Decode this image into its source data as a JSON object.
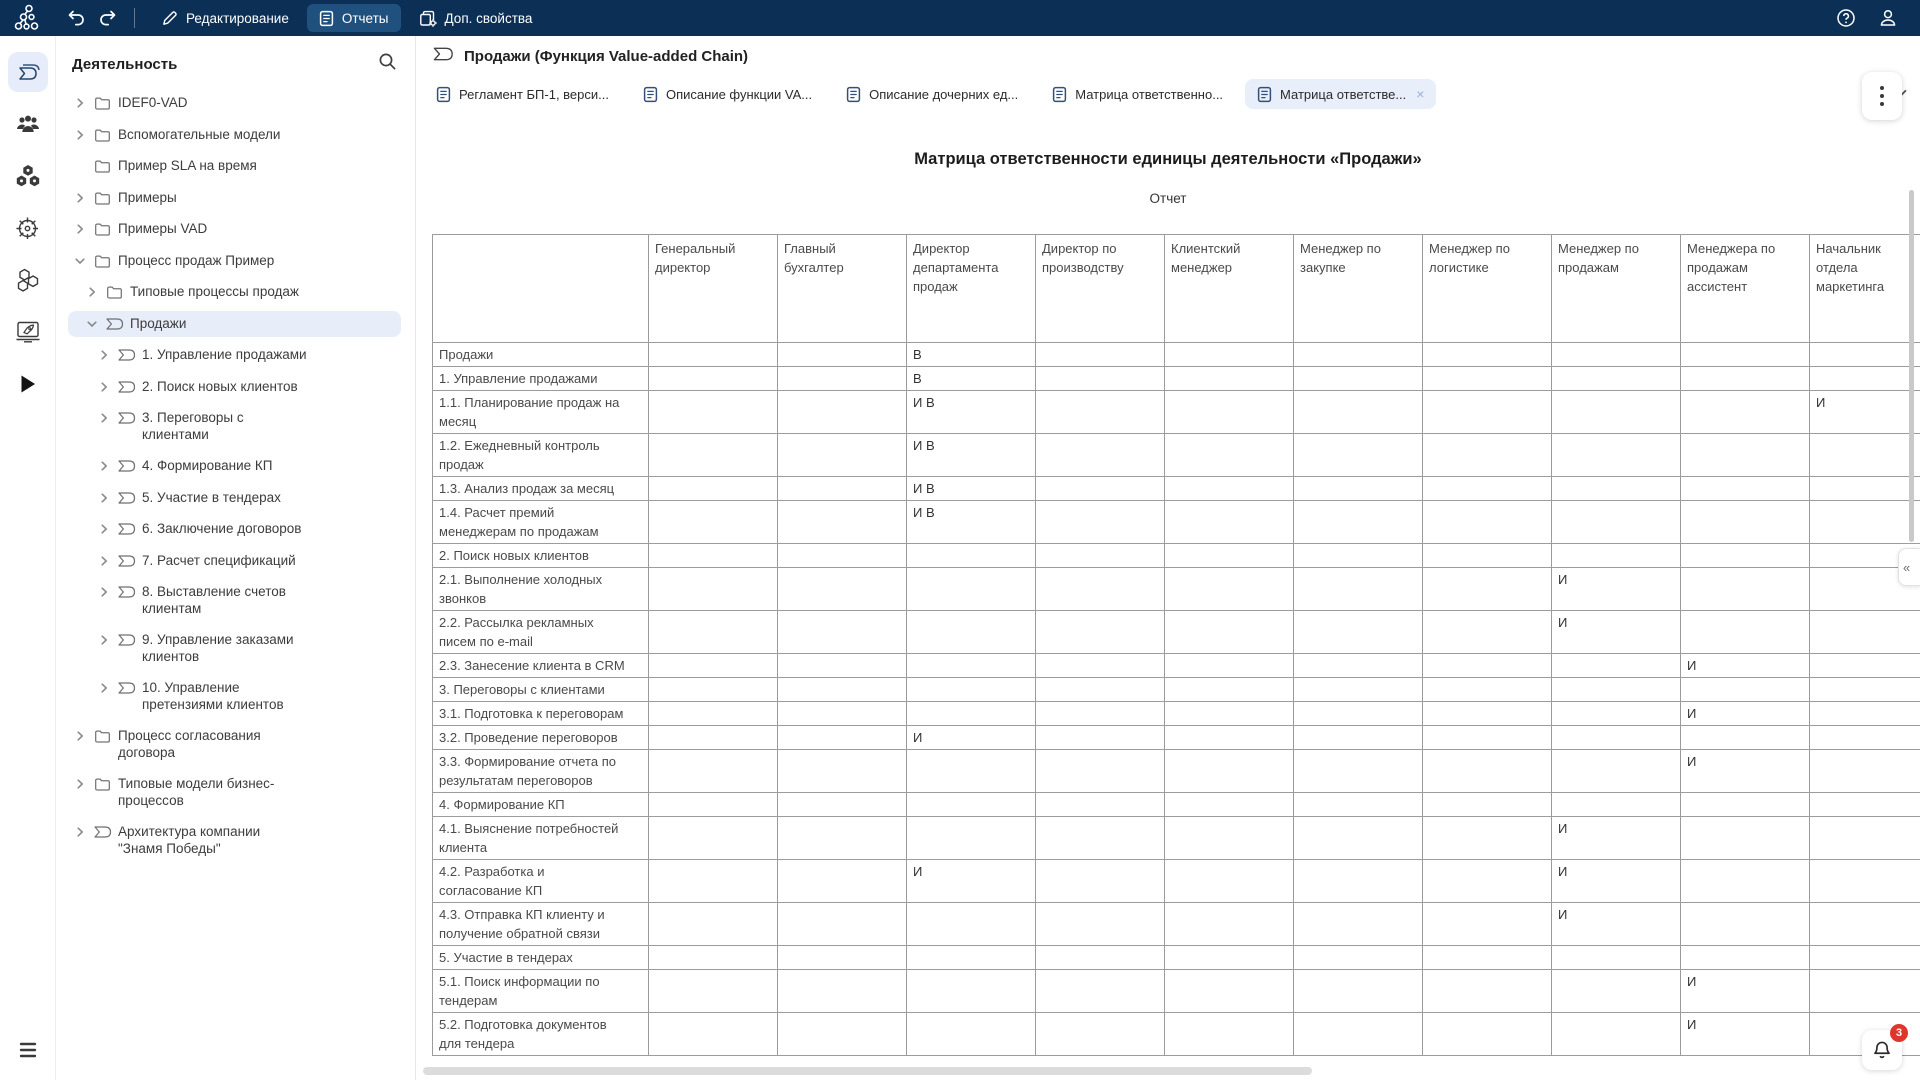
{
  "icons": {
    "close": "×",
    "collapse": "«"
  },
  "topbar": {
    "nav": [
      {
        "label": "Редактирование",
        "icon": "pencil",
        "active": false
      },
      {
        "label": "Отчеты",
        "icon": "report-doc",
        "active": true
      },
      {
        "label": "Доп. свойства",
        "icon": "doc-gear",
        "active": false
      }
    ]
  },
  "rail": [
    {
      "icon": "vad-process",
      "active": true
    },
    {
      "icon": "people",
      "active": false
    },
    {
      "icon": "molecule",
      "active": false
    },
    {
      "icon": "wheel",
      "active": false
    },
    {
      "icon": "hexagons",
      "active": false
    },
    {
      "icon": "rocket",
      "active": false
    },
    {
      "icon": "play",
      "active": false
    }
  ],
  "sidebar": {
    "title": "Деятельность",
    "tree": [
      {
        "label": "IDEF0-VAD",
        "level": 0,
        "icon": "folder",
        "chevron": "right",
        "selected": false
      },
      {
        "label": "Вспомогательные модели",
        "level": 0,
        "icon": "folder",
        "chevron": "right",
        "selected": false
      },
      {
        "label": "Пример SLA на время",
        "level": 0,
        "icon": "folder",
        "chevron": "none",
        "selected": false
      },
      {
        "label": "Примеры",
        "level": 0,
        "icon": "folder",
        "chevron": "right",
        "selected": false
      },
      {
        "label": "Примеры VAD",
        "level": 0,
        "icon": "folder",
        "chevron": "right",
        "selected": false
      },
      {
        "label": "Процесс продаж Пример",
        "level": 0,
        "icon": "folder",
        "chevron": "down",
        "selected": false
      },
      {
        "label": "Типовые процессы продаж",
        "level": 1,
        "icon": "folder",
        "chevron": "right",
        "selected": false
      },
      {
        "label": "Продажи",
        "level": 1,
        "icon": "vad",
        "chevron": "down",
        "selected": true
      },
      {
        "label": "1. Управление продажами",
        "level": 2,
        "icon": "vad",
        "chevron": "right",
        "selected": false
      },
      {
        "label": "2. Поиск новых клиентов",
        "level": 2,
        "icon": "vad",
        "chevron": "right",
        "selected": false
      },
      {
        "label": "3. Переговоры с\nклиентами",
        "level": 2,
        "icon": "vad",
        "chevron": "right",
        "selected": false
      },
      {
        "label": "4. Формирование КП",
        "level": 2,
        "icon": "vad",
        "chevron": "right",
        "selected": false
      },
      {
        "label": "5. Участие в тендерах",
        "level": 2,
        "icon": "vad",
        "chevron": "right",
        "selected": false
      },
      {
        "label": "6. Заключение договоров",
        "level": 2,
        "icon": "vad",
        "chevron": "right",
        "selected": false
      },
      {
        "label": "7. Расчет спецификаций",
        "level": 2,
        "icon": "vad",
        "chevron": "right",
        "selected": false
      },
      {
        "label": "8. Выставление счетов\nклиентам",
        "level": 2,
        "icon": "vad",
        "chevron": "right",
        "selected": false
      },
      {
        "label": "9. Управление заказами\nклиентов",
        "level": 2,
        "icon": "vad",
        "chevron": "right",
        "selected": false
      },
      {
        "label": "10. Управление\nпретензиями клиентов",
        "level": 2,
        "icon": "vad",
        "chevron": "right",
        "selected": false
      },
      {
        "label": "Процесс согласования\nдоговора",
        "level": 0,
        "icon": "folder",
        "chevron": "right",
        "selected": false
      },
      {
        "label": "Типовые модели бизнес-\nпроцессов",
        "level": 0,
        "icon": "folder",
        "chevron": "right",
        "selected": false
      },
      {
        "label": "Архитектура компании\n\"Знамя Победы\"",
        "level": 0,
        "icon": "vad",
        "chevron": "right",
        "selected": false
      }
    ]
  },
  "main": {
    "page_title": "Продажи (Функция Value-added Chain)",
    "doc_tabs": [
      {
        "label": "Регламент БП-1, верси...",
        "active": false,
        "closable": false
      },
      {
        "label": "Описание функции VA...",
        "active": false,
        "closable": false
      },
      {
        "label": "Описание дочерних ед...",
        "active": false,
        "closable": false
      },
      {
        "label": "Матрица ответственно...",
        "active": false,
        "closable": false
      },
      {
        "label": "Матрица ответстве...",
        "active": true,
        "closable": true
      }
    ]
  },
  "report": {
    "title": "Матрица ответственности единицы деятельности «Продажи»",
    "subtitle": "Отчет",
    "table": {
      "columns": [
        "Генеральный\nдиректор",
        "Главный\nбухгалтер",
        "Директор\nдепартамента\nпродаж",
        "Директор по\nпроизводству",
        "Клиентский\nменеджер",
        "Менеджер по\nзакупке",
        "Менеджер по\nлогистике",
        "Менеджер по\nпродажам",
        "Менеджера по\nпродажам\nассистент",
        "Начальник\nотдела\nмаркетинга"
      ],
      "rows": [
        {
          "label": "Продажи",
          "cells": [
            "",
            "",
            "В",
            "",
            "",
            "",
            "",
            "",
            "",
            ""
          ]
        },
        {
          "label": "1. Управление продажами",
          "cells": [
            "",
            "",
            "В",
            "",
            "",
            "",
            "",
            "",
            "",
            ""
          ]
        },
        {
          "label": "1.1. Планирование продаж на\nмесяц",
          "cells": [
            "",
            "",
            "И В",
            "",
            "",
            "",
            "",
            "",
            "",
            "И"
          ]
        },
        {
          "label": "1.2. Ежедневный контроль\nпродаж",
          "cells": [
            "",
            "",
            "И В",
            "",
            "",
            "",
            "",
            "",
            "",
            ""
          ]
        },
        {
          "label": "1.3. Анализ продаж за месяц",
          "cells": [
            "",
            "",
            "И В",
            "",
            "",
            "",
            "",
            "",
            "",
            ""
          ]
        },
        {
          "label": "1.4. Расчет премий\nменеджерам по продажам",
          "cells": [
            "",
            "",
            "И В",
            "",
            "",
            "",
            "",
            "",
            "",
            ""
          ]
        },
        {
          "label": "2. Поиск новых клиентов",
          "cells": [
            "",
            "",
            "",
            "",
            "",
            "",
            "",
            "",
            "",
            ""
          ]
        },
        {
          "label": "2.1. Выполнение холодных\nзвонков",
          "cells": [
            "",
            "",
            "",
            "",
            "",
            "",
            "",
            "И",
            "",
            ""
          ]
        },
        {
          "label": "2.2. Рассылка рекламных\nписем по e-mail",
          "cells": [
            "",
            "",
            "",
            "",
            "",
            "",
            "",
            "И",
            "",
            ""
          ]
        },
        {
          "label": "2.3. Занесение клиента в CRM",
          "cells": [
            "",
            "",
            "",
            "",
            "",
            "",
            "",
            "",
            "И",
            ""
          ]
        },
        {
          "label": "3. Переговоры с клиентами",
          "cells": [
            "",
            "",
            "",
            "",
            "",
            "",
            "",
            "",
            "",
            ""
          ]
        },
        {
          "label": "3.1. Подготовка к переговорам",
          "cells": [
            "",
            "",
            "",
            "",
            "",
            "",
            "",
            "",
            "И",
            ""
          ]
        },
        {
          "label": "3.2. Проведение переговоров",
          "cells": [
            "",
            "",
            "И",
            "",
            "",
            "",
            "",
            "",
            "",
            ""
          ]
        },
        {
          "label": "3.3. Формирование отчета по\nрезультатам переговоров",
          "cells": [
            "",
            "",
            "",
            "",
            "",
            "",
            "",
            "",
            "И",
            ""
          ]
        },
        {
          "label": "4. Формирование КП",
          "cells": [
            "",
            "",
            "",
            "",
            "",
            "",
            "",
            "",
            "",
            ""
          ]
        },
        {
          "label": "4.1. Выяснение потребностей\nклиента",
          "cells": [
            "",
            "",
            "",
            "",
            "",
            "",
            "",
            "И",
            "",
            ""
          ]
        },
        {
          "label": "4.2. Разработка и\nсогласование КП",
          "cells": [
            "",
            "",
            "И",
            "",
            "",
            "",
            "",
            "И",
            "",
            ""
          ]
        },
        {
          "label": "4.3. Отправка КП клиенту и\nполучение обратной связи",
          "cells": [
            "",
            "",
            "",
            "",
            "",
            "",
            "",
            "И",
            "",
            ""
          ]
        },
        {
          "label": "5. Участие в тендерах",
          "cells": [
            "",
            "",
            "",
            "",
            "",
            "",
            "",
            "",
            "",
            ""
          ]
        },
        {
          "label": "5.1. Поиск информации по\nтендерам",
          "cells": [
            "",
            "",
            "",
            "",
            "",
            "",
            "",
            "",
            "И",
            ""
          ]
        },
        {
          "label": "5.2. Подготовка документов\nдля тендера",
          "cells": [
            "",
            "",
            "",
            "",
            "",
            "",
            "",
            "",
            "И",
            ""
          ]
        }
      ]
    }
  },
  "notifications": {
    "badge": "3"
  }
}
